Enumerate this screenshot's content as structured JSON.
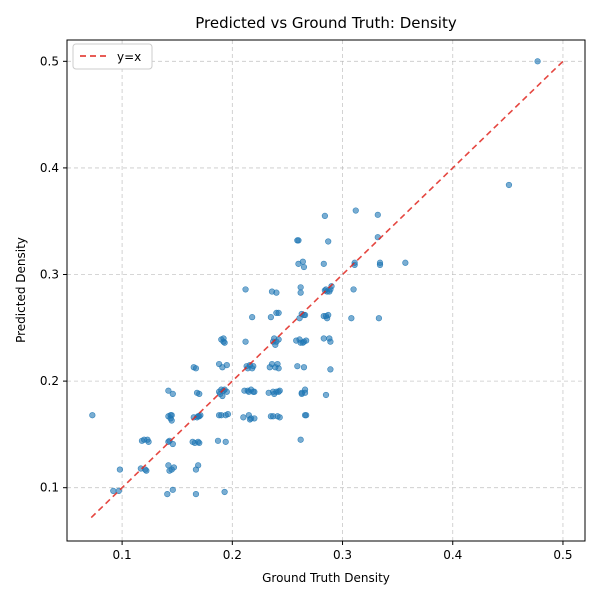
{
  "chart_data": {
    "type": "scatter",
    "title": "Predicted vs Ground Truth: Density",
    "xlabel": "Ground Truth Density",
    "ylabel": "Predicted Density",
    "xlim": [
      0.05,
      0.52
    ],
    "ylim": [
      0.05,
      0.52
    ],
    "xticks": [
      0.1,
      0.2,
      0.3,
      0.4,
      0.5
    ],
    "yticks": [
      0.1,
      0.2,
      0.3,
      0.4,
      0.5
    ],
    "grid": true,
    "legend_position": "top-left",
    "colors": {
      "points": "#1f77b4",
      "reference_line": "#e0261f"
    },
    "reference_line": {
      "name": "y=x",
      "start": 0.072,
      "end": 0.5,
      "style": "dashed"
    },
    "series": [
      {
        "points": [
          [
            0.073,
            0.168
          ],
          [
            0.092,
            0.097
          ],
          [
            0.097,
            0.097
          ],
          [
            0.098,
            0.117
          ],
          [
            0.117,
            0.118
          ],
          [
            0.118,
            0.144
          ],
          [
            0.12,
            0.145
          ],
          [
            0.121,
            0.117
          ],
          [
            0.122,
            0.116
          ],
          [
            0.123,
            0.145
          ],
          [
            0.124,
            0.143
          ],
          [
            0.141,
            0.094
          ],
          [
            0.142,
            0.121
          ],
          [
            0.142,
            0.143
          ],
          [
            0.142,
            0.167
          ],
          [
            0.142,
            0.191
          ],
          [
            0.143,
            0.116
          ],
          [
            0.143,
            0.144
          ],
          [
            0.144,
            0.168
          ],
          [
            0.144,
            0.165
          ],
          [
            0.145,
            0.117
          ],
          [
            0.145,
            0.163
          ],
          [
            0.145,
            0.168
          ],
          [
            0.146,
            0.188
          ],
          [
            0.146,
            0.098
          ],
          [
            0.146,
            0.141
          ],
          [
            0.147,
            0.119
          ],
          [
            0.164,
            0.143
          ],
          [
            0.165,
            0.166
          ],
          [
            0.165,
            0.213
          ],
          [
            0.166,
            0.142
          ],
          [
            0.167,
            0.212
          ],
          [
            0.167,
            0.094
          ],
          [
            0.167,
            0.117
          ],
          [
            0.168,
            0.189
          ],
          [
            0.168,
            0.166
          ],
          [
            0.169,
            0.121
          ],
          [
            0.169,
            0.143
          ],
          [
            0.169,
            0.167
          ],
          [
            0.17,
            0.167
          ],
          [
            0.17,
            0.188
          ],
          [
            0.17,
            0.142
          ],
          [
            0.171,
            0.168
          ],
          [
            0.187,
            0.144
          ],
          [
            0.188,
            0.168
          ],
          [
            0.188,
            0.19
          ],
          [
            0.188,
            0.216
          ],
          [
            0.189,
            0.188
          ],
          [
            0.19,
            0.239
          ],
          [
            0.19,
            0.168
          ],
          [
            0.19,
            0.192
          ],
          [
            0.191,
            0.213
          ],
          [
            0.191,
            0.186
          ],
          [
            0.192,
            0.24
          ],
          [
            0.192,
            0.237
          ],
          [
            0.192,
            0.191
          ],
          [
            0.193,
            0.236
          ],
          [
            0.193,
            0.192
          ],
          [
            0.193,
            0.096
          ],
          [
            0.194,
            0.168
          ],
          [
            0.194,
            0.143
          ],
          [
            0.195,
            0.215
          ],
          [
            0.195,
            0.19
          ],
          [
            0.196,
            0.169
          ],
          [
            0.21,
            0.166
          ],
          [
            0.211,
            0.191
          ],
          [
            0.212,
            0.286
          ],
          [
            0.212,
            0.237
          ],
          [
            0.213,
            0.214
          ],
          [
            0.214,
            0.191
          ],
          [
            0.214,
            0.212
          ],
          [
            0.215,
            0.168
          ],
          [
            0.215,
            0.19
          ],
          [
            0.216,
            0.164
          ],
          [
            0.216,
            0.215
          ],
          [
            0.217,
            0.192
          ],
          [
            0.217,
            0.165
          ],
          [
            0.218,
            0.26
          ],
          [
            0.218,
            0.212
          ],
          [
            0.219,
            0.19
          ],
          [
            0.219,
            0.214
          ],
          [
            0.22,
            0.165
          ],
          [
            0.22,
            0.19
          ],
          [
            0.233,
            0.189
          ],
          [
            0.234,
            0.213
          ],
          [
            0.235,
            0.26
          ],
          [
            0.235,
            0.167
          ],
          [
            0.236,
            0.284
          ],
          [
            0.236,
            0.216
          ],
          [
            0.237,
            0.237
          ],
          [
            0.237,
            0.19
          ],
          [
            0.237,
            0.167
          ],
          [
            0.238,
            0.24
          ],
          [
            0.238,
            0.188
          ],
          [
            0.239,
            0.213
          ],
          [
            0.239,
            0.234
          ],
          [
            0.24,
            0.237
          ],
          [
            0.24,
            0.264
          ],
          [
            0.24,
            0.19
          ],
          [
            0.24,
            0.283
          ],
          [
            0.241,
            0.216
          ],
          [
            0.241,
            0.167
          ],
          [
            0.242,
            0.239
          ],
          [
            0.242,
            0.212
          ],
          [
            0.242,
            0.19
          ],
          [
            0.242,
            0.264
          ],
          [
            0.243,
            0.166
          ],
          [
            0.243,
            0.191
          ],
          [
            0.258,
            0.238
          ],
          [
            0.259,
            0.214
          ],
          [
            0.259,
            0.332
          ],
          [
            0.26,
            0.31
          ],
          [
            0.26,
            0.332
          ],
          [
            0.261,
            0.259
          ],
          [
            0.261,
            0.239
          ],
          [
            0.262,
            0.145
          ],
          [
            0.262,
            0.288
          ],
          [
            0.262,
            0.283
          ],
          [
            0.262,
            0.236
          ],
          [
            0.263,
            0.263
          ],
          [
            0.263,
            0.189
          ],
          [
            0.263,
            0.188
          ],
          [
            0.264,
            0.236
          ],
          [
            0.264,
            0.312
          ],
          [
            0.265,
            0.262
          ],
          [
            0.265,
            0.307
          ],
          [
            0.265,
            0.213
          ],
          [
            0.265,
            0.237
          ],
          [
            0.266,
            0.168
          ],
          [
            0.266,
            0.189
          ],
          [
            0.266,
            0.192
          ],
          [
            0.266,
            0.262
          ],
          [
            0.267,
            0.238
          ],
          [
            0.267,
            0.168
          ],
          [
            0.283,
            0.24
          ],
          [
            0.283,
            0.31
          ],
          [
            0.283,
            0.261
          ],
          [
            0.284,
            0.355
          ],
          [
            0.284,
            0.285
          ],
          [
            0.285,
            0.286
          ],
          [
            0.285,
            0.187
          ],
          [
            0.285,
            0.261
          ],
          [
            0.286,
            0.284
          ],
          [
            0.286,
            0.259
          ],
          [
            0.287,
            0.331
          ],
          [
            0.287,
            0.262
          ],
          [
            0.288,
            0.24
          ],
          [
            0.288,
            0.284
          ],
          [
            0.289,
            0.237
          ],
          [
            0.289,
            0.211
          ],
          [
            0.289,
            0.286
          ],
          [
            0.29,
            0.289
          ],
          [
            0.308,
            0.259
          ],
          [
            0.31,
            0.286
          ],
          [
            0.311,
            0.309
          ],
          [
            0.311,
            0.311
          ],
          [
            0.312,
            0.36
          ],
          [
            0.332,
            0.335
          ],
          [
            0.332,
            0.356
          ],
          [
            0.333,
            0.259
          ],
          [
            0.334,
            0.309
          ],
          [
            0.334,
            0.311
          ],
          [
            0.357,
            0.311
          ],
          [
            0.451,
            0.384
          ],
          [
            0.477,
            0.5
          ]
        ]
      }
    ]
  }
}
